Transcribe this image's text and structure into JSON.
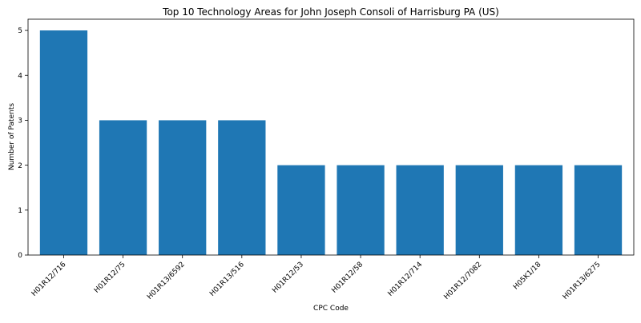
{
  "chart_data": {
    "type": "bar",
    "title": "Top 10 Technology Areas for John Joseph Consoli of Harrisburg PA (US)",
    "xlabel": "CPC Code",
    "ylabel": "Number of Patents",
    "categories": [
      "H01R12/716",
      "H01R12/75",
      "H01R13/6592",
      "H01R13/516",
      "H01R12/53",
      "H01R12/58",
      "H01R12/714",
      "H01R12/7082",
      "H05K1/18",
      "H01R13/6275"
    ],
    "values": [
      5,
      3,
      3,
      3,
      2,
      2,
      2,
      2,
      2,
      2
    ],
    "ylim": [
      0,
      5.25
    ],
    "yticks": [
      0,
      1,
      2,
      3,
      4,
      5
    ],
    "bar_color": "#1f77b4",
    "grid": false,
    "legend": "none"
  }
}
